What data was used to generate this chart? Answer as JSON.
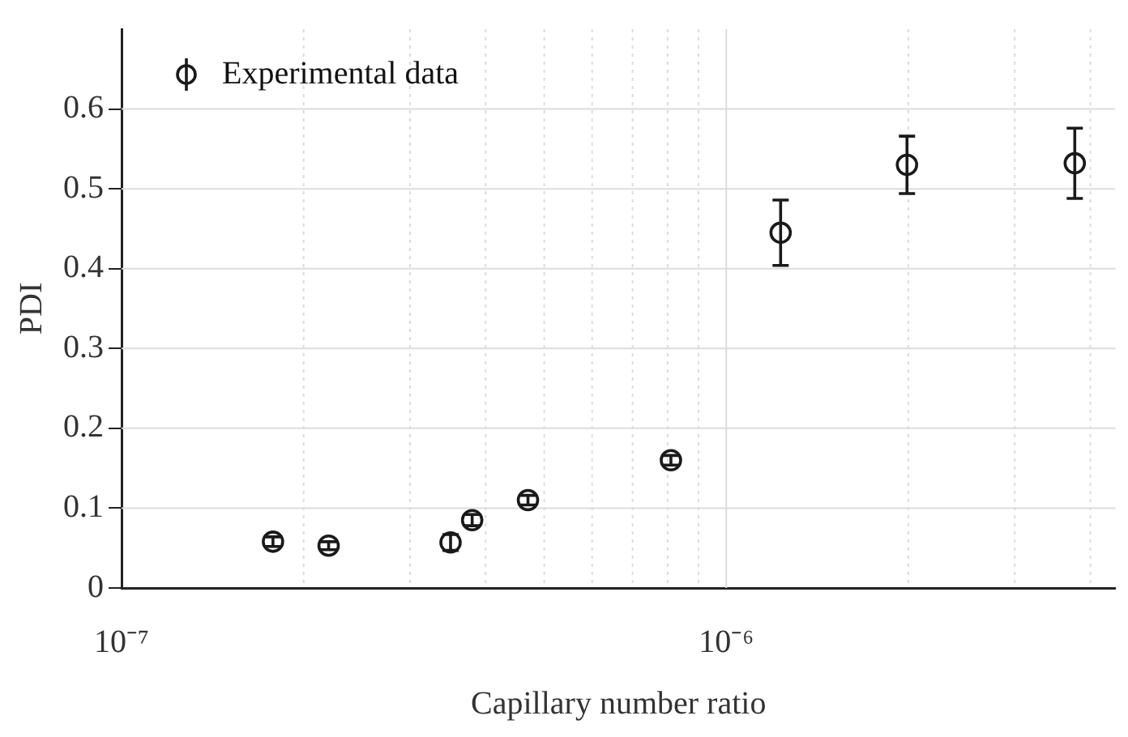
{
  "chart_data": {
    "type": "scatter",
    "xlabel": "Capillary number ratio",
    "ylabel": "PDI",
    "log": "x",
    "x": [
      1.78e-07,
      2.2e-07,
      3.5e-07,
      3.8e-07,
      4.7e-07,
      8.1e-07,
      1.23e-06,
      1.99e-06,
      3.77e-06
    ],
    "series": [
      {
        "name": "Experimental data",
        "color": "#1a1a1a",
        "values": [
          0.058,
          0.053,
          0.057,
          0.085,
          0.11,
          0.16,
          0.445,
          0.53,
          0.532
        ],
        "errors": [
          0.006,
          0.005,
          0.01,
          0.007,
          0.006,
          0.006,
          0.041,
          0.036,
          0.044
        ]
      }
    ],
    "xlim": [
      1e-07,
      4.4e-06
    ],
    "xticks": [
      {
        "value": 1e-07,
        "label": "10⁻⁷"
      },
      {
        "value": 2e-07,
        "label": null
      },
      {
        "value": 3e-07,
        "label": null
      },
      {
        "value": 4e-07,
        "label": null
      },
      {
        "value": 5e-07,
        "label": null
      },
      {
        "value": 6e-07,
        "label": null
      },
      {
        "value": 7e-07,
        "label": null
      },
      {
        "value": 8e-07,
        "label": null
      },
      {
        "value": 9e-07,
        "label": null
      },
      {
        "value": 1e-06,
        "label": "10⁻⁶"
      },
      {
        "value": 2e-06,
        "label": null
      },
      {
        "value": 3e-06,
        "label": null
      },
      {
        "value": 4e-06,
        "label": null
      }
    ],
    "ylim": [
      0,
      0.7
    ],
    "yticks": [
      0,
      0.1,
      0.2,
      0.3,
      0.4,
      0.5,
      0.6
    ],
    "grid": true,
    "legend": "top left",
    "marker": "circle"
  }
}
